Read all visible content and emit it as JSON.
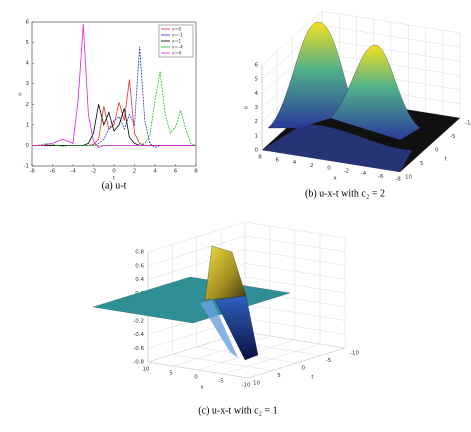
{
  "chart_data": [
    {
      "type": "line",
      "xlabel": "t",
      "ylabel": "u",
      "x": [
        -8,
        -7.5,
        -7,
        -6.5,
        -6,
        -5.5,
        -5,
        -4.5,
        -4,
        -3.5,
        -3,
        -2.5,
        -2,
        -1.5,
        -1,
        -0.5,
        0,
        0.5,
        1,
        1.5,
        2,
        2.5,
        3,
        3.5,
        4,
        4.5,
        5,
        5.5,
        6,
        6.5,
        7,
        7.5,
        8
      ],
      "xlim": [
        -8,
        8
      ],
      "xticks": [
        -8,
        -6,
        -4,
        -2,
        0,
        2,
        4,
        6,
        8
      ],
      "ylim": [
        -1,
        6
      ],
      "yticks": [
        -1,
        0,
        1,
        2,
        3,
        4,
        5,
        6
      ],
      "legend": "upper right",
      "series": [
        {
          "name": "x=0",
          "color": "#e03030",
          "values": [
            0,
            0,
            0,
            0,
            0,
            0,
            0,
            0,
            0,
            0,
            0,
            0,
            0.05,
            0.3,
            1.9,
            0.8,
            1.0,
            2.1,
            1.2,
            3.2,
            0.6,
            0.1,
            0,
            0,
            0,
            0,
            0,
            0,
            0,
            0,
            0,
            0,
            0
          ]
        },
        {
          "name": "x=-1",
          "color": "#2030d0",
          "values": [
            0,
            0,
            0,
            0,
            0,
            0,
            0,
            0,
            0,
            0,
            0,
            0,
            0,
            0.1,
            0.3,
            0.8,
            1.2,
            1.4,
            0.8,
            1.5,
            1.0,
            4.8,
            1.2,
            0.1,
            -0.1,
            0,
            0,
            0,
            0,
            0,
            0,
            0,
            0
          ]
        },
        {
          "name": "x=1",
          "color": "#000000",
          "values": [
            0,
            0,
            0,
            0,
            0,
            0,
            0,
            0,
            0,
            0,
            0,
            0.1,
            0.6,
            2.0,
            1.0,
            1.6,
            0.7,
            1.0,
            1.8,
            0.4,
            0.1,
            0,
            0,
            0,
            0,
            0,
            0,
            0,
            0,
            0,
            0,
            0,
            0
          ]
        },
        {
          "name": "x=-4",
          "color": "#20c020",
          "values": [
            0,
            0,
            0.05,
            0.1,
            0.05,
            0,
            -0.05,
            0,
            0,
            0,
            0,
            0,
            0,
            0,
            0,
            0,
            0,
            0,
            0,
            0,
            0,
            0,
            0.1,
            0.5,
            2.2,
            3.6,
            1.5,
            0.6,
            0.9,
            1.7,
            0.8,
            0.1,
            0
          ]
        },
        {
          "name": "x=4",
          "color": "#e020e0",
          "values": [
            0,
            0,
            0,
            0.05,
            0.1,
            0.2,
            0.3,
            0.2,
            0.1,
            2.2,
            5.9,
            1.5,
            0.2,
            -0.1,
            0,
            0,
            0,
            0,
            0,
            0,
            0,
            0,
            0,
            0,
            0,
            0,
            0,
            0,
            0,
            0,
            0,
            0,
            0
          ]
        }
      ]
    },
    {
      "type": "surface",
      "xlabel": "x",
      "ylabel": "t",
      "zlabel": "u",
      "xlim": [
        -8,
        8
      ],
      "xticks": [
        8,
        6,
        4,
        2,
        0,
        -2,
        -4,
        -6,
        -8
      ],
      "ylim": [
        -10,
        10
      ],
      "yticks": [
        -10,
        -5,
        0,
        5,
        10
      ],
      "zlim": [
        0,
        6
      ],
      "zticks": [
        0,
        1,
        2,
        3,
        4,
        5,
        6
      ]
    },
    {
      "type": "surface",
      "xlabel": "x",
      "ylabel": "t",
      "zlabel": "u",
      "xlim": [
        -10,
        10
      ],
      "xticks": [
        10,
        5,
        0,
        -5,
        -10
      ],
      "ylim": [
        -10,
        10
      ],
      "yticks": [
        -10,
        -5,
        0,
        5,
        10
      ],
      "zlim": [
        -0.8,
        0.8
      ],
      "zticks": [
        -0.8,
        -0.6,
        -0.4,
        -0.2,
        0,
        0.2,
        0.4,
        0.6,
        0.8
      ]
    }
  ],
  "captions": [
    "(a) u-t",
    "(b) u-x-t with c₂ = 2",
    "(c) u-x-t with c₂ = 1"
  ]
}
